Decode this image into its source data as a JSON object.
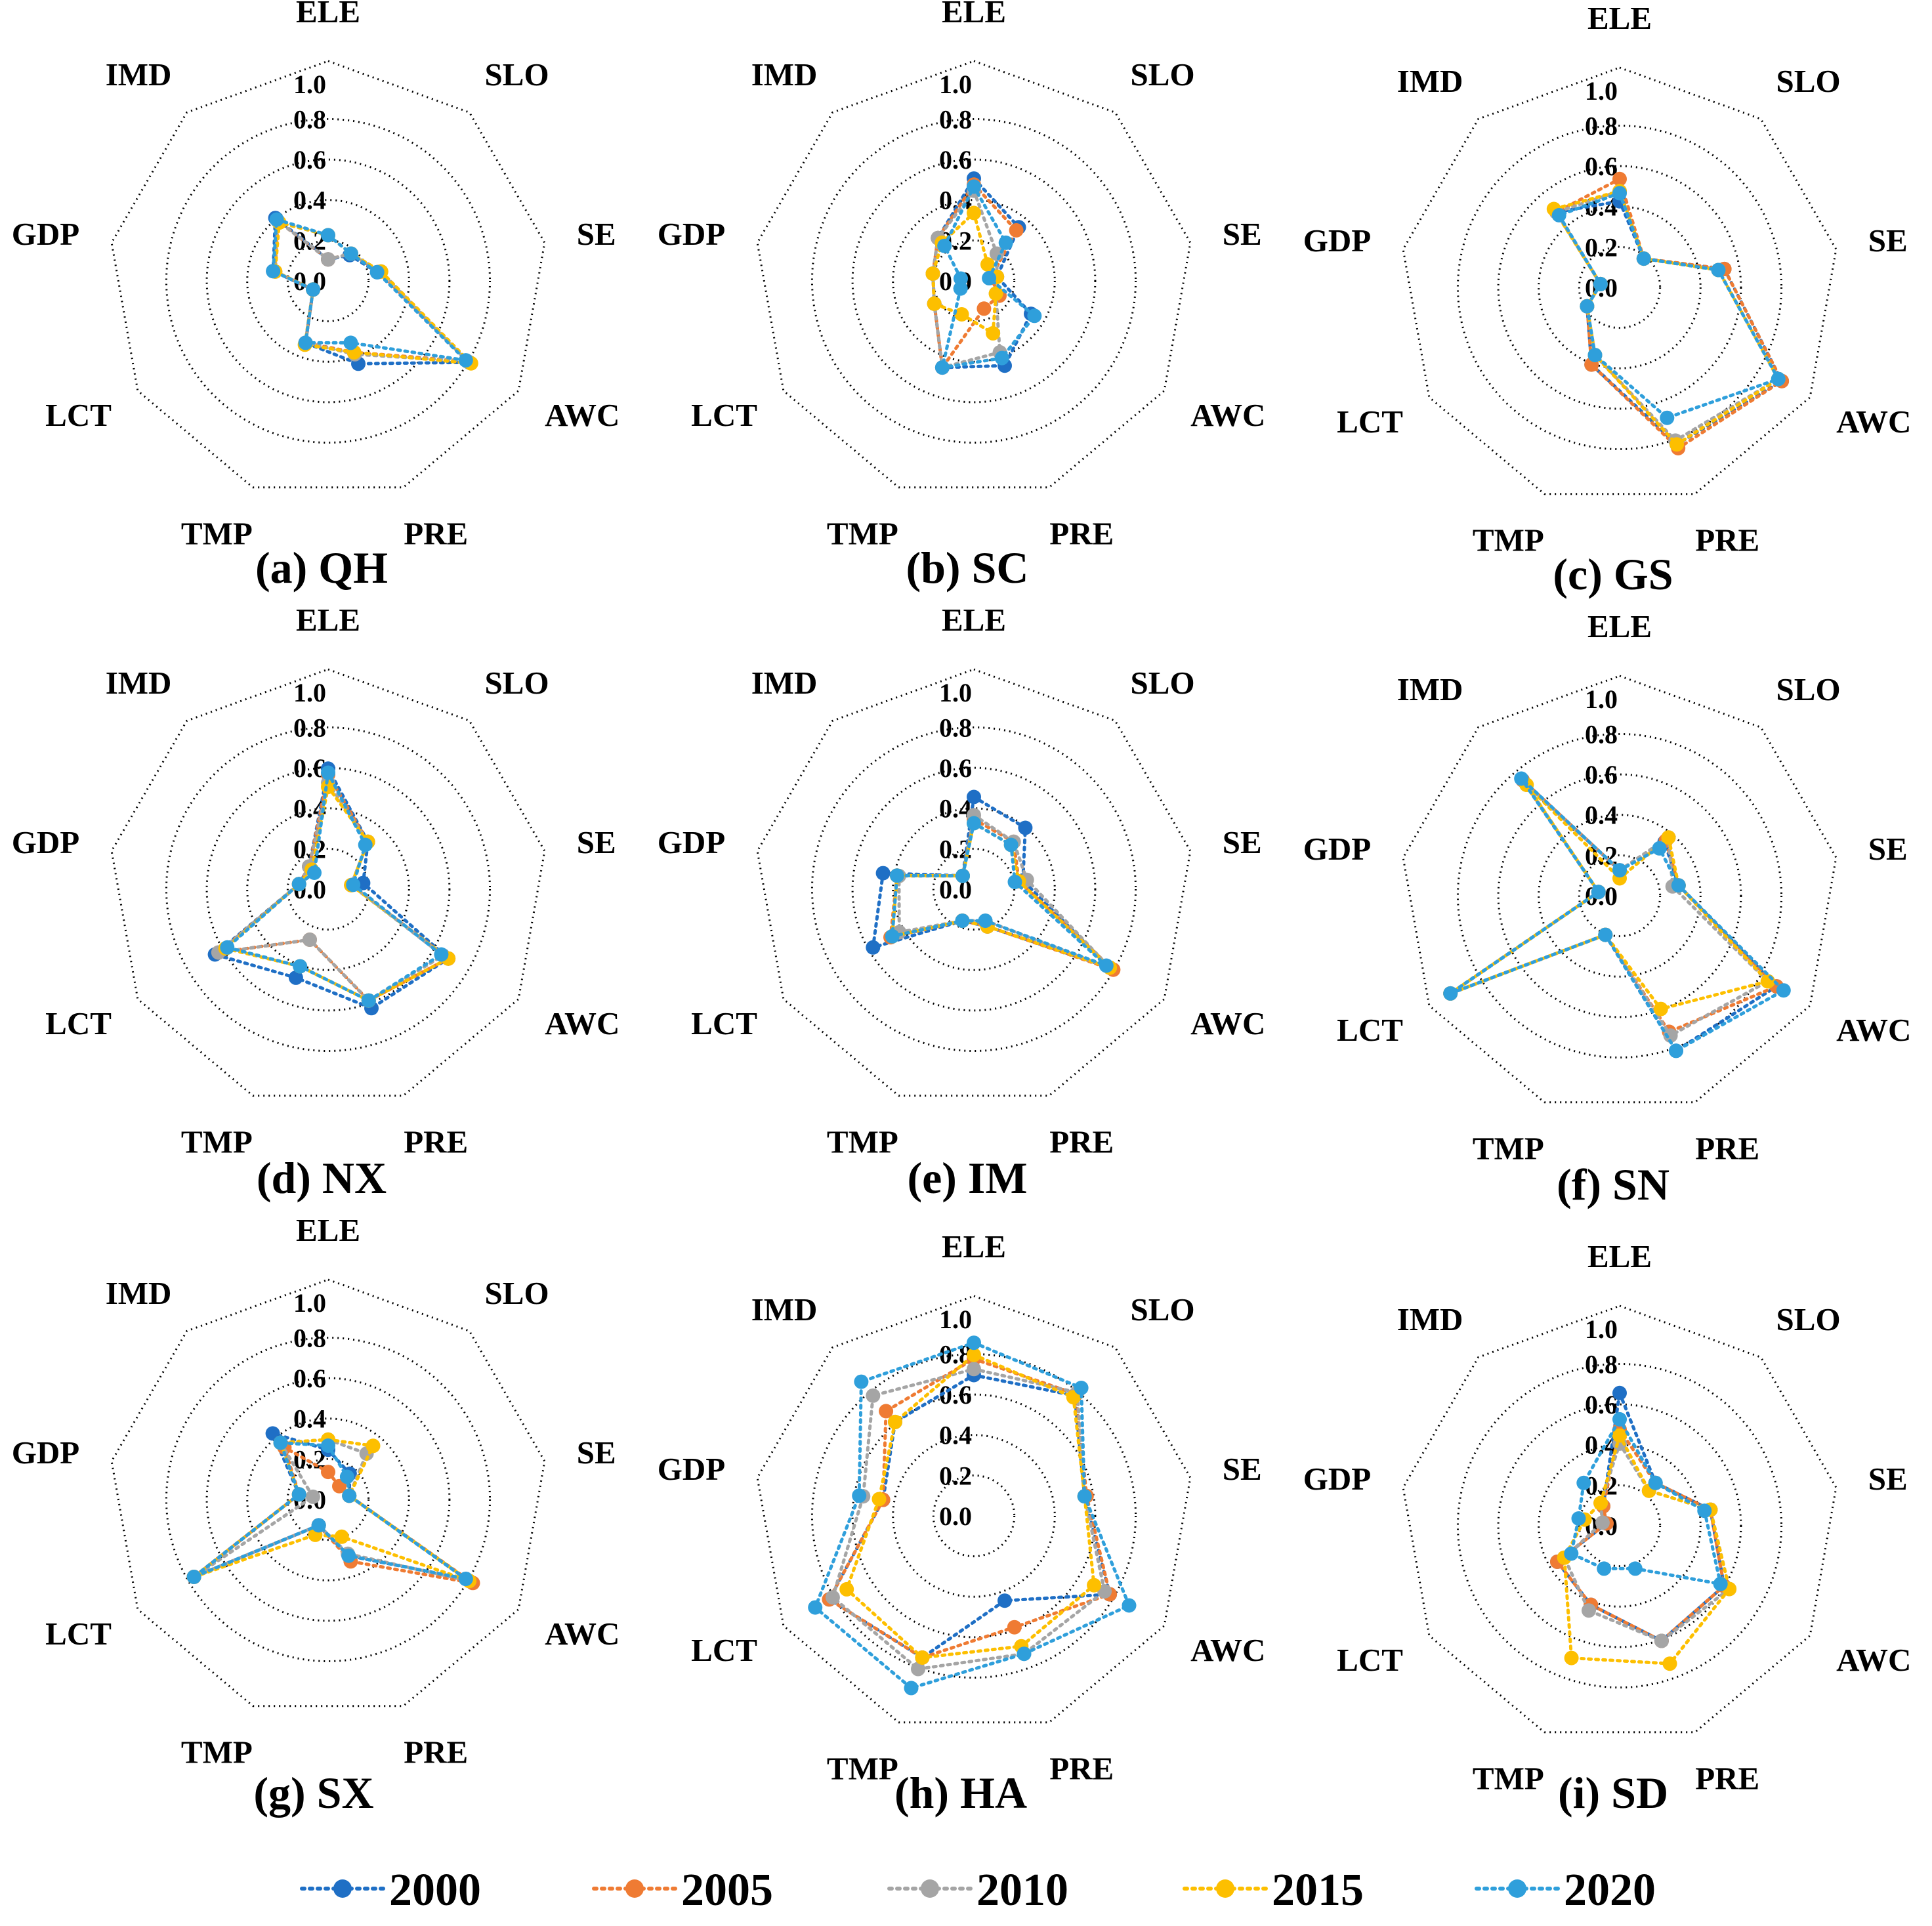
{
  "chart_data": {
    "type": "radar",
    "axes": [
      "ELE",
      "SLO",
      "SE",
      "AWC",
      "PRE",
      "TMP",
      "LCT",
      "GDP",
      "IMD"
    ],
    "ticks": [
      "1.0",
      "0.8",
      "0.6",
      "0.4",
      "0.2",
      "0.0"
    ],
    "rlim": [
      0,
      1
    ],
    "grid": "dotted",
    "legend": {
      "placement": "bottom",
      "entries": [
        {
          "name": "2000",
          "color": "#1f6fc5"
        },
        {
          "name": "2005",
          "color": "#ef7b33"
        },
        {
          "name": "2010",
          "color": "#a5a5a5"
        },
        {
          "name": "2015",
          "color": "#fdbf00"
        },
        {
          "name": "2020",
          "color": "#2f9fdb"
        }
      ]
    },
    "panels": [
      {
        "caption": "(a) QH",
        "series": [
          {
            "name": "2000",
            "values": [
              0.08,
              0.14,
              0.22,
              0.78,
              0.41,
              0.3,
              0.06,
              0.25,
              0.38
            ]
          },
          {
            "name": "2005",
            "values": [
              0.08,
              0.15,
              0.23,
              0.77,
              0.35,
              0.3,
              0.06,
              0.24,
              0.36
            ]
          },
          {
            "name": "2010",
            "values": [
              0.08,
              0.15,
              0.24,
              0.77,
              0.36,
              0.3,
              0.06,
              0.24,
              0.36
            ]
          },
          {
            "name": "2015",
            "values": [
              0.2,
              0.15,
              0.24,
              0.79,
              0.35,
              0.31,
              0.06,
              0.24,
              0.35
            ]
          },
          {
            "name": "2020",
            "values": [
              0.2,
              0.15,
              0.22,
              0.76,
              0.3,
              0.3,
              0.06,
              0.25,
              0.37
            ]
          }
        ]
      },
      {
        "caption": "(b) SC",
        "series": [
          {
            "name": "2000",
            "values": [
              0.48,
              0.32,
              0.09,
              0.3,
              0.42,
              0.43,
              0.2,
              0.18,
              0.25
            ]
          },
          {
            "name": "2005",
            "values": [
              0.45,
              0.3,
              0.06,
              0.12,
              0.12,
              0.43,
              0.2,
              0.18,
              0.25
            ]
          },
          {
            "name": "2010",
            "values": [
              0.42,
              0.15,
              0.09,
              0.1,
              0.35,
              0.43,
              0.2,
              0.18,
              0.25
            ]
          },
          {
            "name": "2015",
            "values": [
              0.31,
              0.08,
              0.09,
              0.1,
              0.25,
              0.15,
              0.2,
              0.18,
              0.22
            ]
          },
          {
            "name": "2020",
            "values": [
              0.44,
              0.22,
              0.05,
              0.32,
              0.38,
              0.43,
              0.05,
              0.04,
              0.2
            ]
          }
        ]
      },
      {
        "caption": "(c) GS",
        "series": [
          {
            "name": "2000",
            "values": [
              0.4,
              0.16,
              0.5,
              0.9,
              0.8,
              0.38,
              0.16,
              0.07,
              0.46
            ]
          },
          {
            "name": "2005",
            "values": [
              0.51,
              0.16,
              0.5,
              0.9,
              0.82,
              0.38,
              0.16,
              0.07,
              0.46
            ]
          },
          {
            "name": "2010",
            "values": [
              0.45,
              0.16,
              0.47,
              0.88,
              0.78,
              0.33,
              0.16,
              0.07,
              0.46
            ]
          },
          {
            "name": "2015",
            "values": [
              0.45,
              0.16,
              0.47,
              0.88,
              0.8,
              0.33,
              0.16,
              0.07,
              0.48
            ]
          },
          {
            "name": "2020",
            "values": [
              0.44,
              0.16,
              0.47,
              0.88,
              0.66,
              0.33,
              0.16,
              0.07,
              0.44
            ]
          }
        ]
      },
      {
        "caption": "(d) NX",
        "series": [
          {
            "name": "2000",
            "values": [
              0.57,
              0.28,
              0.15,
              0.66,
              0.6,
              0.44,
              0.62,
              0.12,
              0.12
            ]
          },
          {
            "name": "2005",
            "values": [
              0.54,
              0.28,
              0.09,
              0.66,
              0.56,
              0.24,
              0.6,
              0.12,
              0.12
            ]
          },
          {
            "name": "2010",
            "values": [
              0.5,
              0.28,
              0.09,
              0.63,
              0.56,
              0.24,
              0.6,
              0.12,
              0.12
            ]
          },
          {
            "name": "2015",
            "values": [
              0.48,
              0.28,
              0.09,
              0.66,
              0.56,
              0.38,
              0.56,
              0.12,
              0.1
            ]
          },
          {
            "name": "2020",
            "values": [
              0.55,
              0.26,
              0.1,
              0.62,
              0.56,
              0.38,
              0.55,
              0.12,
              0.08
            ]
          }
        ]
      },
      {
        "caption": "(e) IM",
        "series": [
          {
            "name": "2000",
            "values": [
              0.43,
              0.37,
              0.22,
              0.75,
              0.17,
              0.14,
              0.55,
              0.43,
              0.06
            ]
          },
          {
            "name": "2005",
            "values": [
              0.32,
              0.28,
              0.2,
              0.77,
              0.17,
              0.14,
              0.45,
              0.36,
              0.06
            ]
          },
          {
            "name": "2010",
            "values": [
              0.34,
              0.28,
              0.24,
              0.75,
              0.14,
              0.14,
              0.4,
              0.35,
              0.06
            ]
          },
          {
            "name": "2015",
            "values": [
              0.3,
              0.26,
              0.2,
              0.75,
              0.17,
              0.14,
              0.44,
              0.36,
              0.06
            ]
          },
          {
            "name": "2020",
            "values": [
              0.3,
              0.26,
              0.18,
              0.73,
              0.14,
              0.14,
              0.44,
              0.36,
              0.06
            ]
          }
        ]
      },
      {
        "caption": "(f) SN",
        "series": [
          {
            "name": "2000",
            "values": [
              0.1,
              0.32,
              0.27,
              0.87,
              0.79,
              0.18,
              0.94,
              0.08,
              0.72
            ]
          },
          {
            "name": "2005",
            "values": [
              0.1,
              0.33,
              0.27,
              0.87,
              0.69,
              0.18,
              0.94,
              0.08,
              0.72
            ]
          },
          {
            "name": "2010",
            "values": [
              0.1,
              0.35,
              0.24,
              0.82,
              0.71,
              0.18,
              0.94,
              0.08,
              0.69
            ]
          },
          {
            "name": "2015",
            "values": [
              0.06,
              0.35,
              0.27,
              0.82,
              0.57,
              0.18,
              0.94,
              0.08,
              0.69
            ]
          },
          {
            "name": "2020",
            "values": [
              0.1,
              0.28,
              0.27,
              0.91,
              0.79,
              0.18,
              0.94,
              0.08,
              0.73
            ]
          }
        ]
      },
      {
        "caption": "(g) SX",
        "series": [
          {
            "name": "2000",
            "values": [
              0.22,
              0.14,
              0.08,
              0.76,
              0.27,
              0.11,
              0.74,
              0.12,
              0.4
            ]
          },
          {
            "name": "2005",
            "values": [
              0.11,
              0.06,
              0.08,
              0.8,
              0.3,
              0.11,
              0.74,
              0.12,
              0.31
            ]
          },
          {
            "name": "2010",
            "values": [
              0.27,
              0.27,
              0.08,
              0.78,
              0.26,
              0.11,
              0.74,
              0.05,
              0.34
            ]
          },
          {
            "name": "2015",
            "values": [
              0.27,
              0.32,
              0.08,
              0.78,
              0.17,
              0.16,
              0.74,
              0.12,
              0.34
            ]
          },
          {
            "name": "2020",
            "values": [
              0.24,
              0.12,
              0.08,
              0.76,
              0.27,
              0.11,
              0.74,
              0.12,
              0.34
            ]
          }
        ]
      },
      {
        "caption": "(h) HA",
        "series": [
          {
            "name": "2000",
            "values": [
              0.67,
              0.75,
              0.53,
              0.75,
              0.42,
              0.72,
              0.8,
              0.43,
              0.58
            ]
          },
          {
            "name": "2005",
            "values": [
              0.75,
              0.76,
              0.54,
              0.75,
              0.56,
              0.72,
              0.8,
              0.43,
              0.65
            ]
          },
          {
            "name": "2010",
            "values": [
              0.7,
              0.77,
              0.53,
              0.72,
              0.7,
              0.78,
              0.78,
              0.53,
              0.75
            ]
          },
          {
            "name": "2015",
            "values": [
              0.77,
              0.74,
              0.53,
              0.66,
              0.66,
              0.72,
              0.7,
              0.45,
              0.58
            ]
          },
          {
            "name": "2020",
            "values": [
              0.83,
              0.8,
              0.53,
              0.86,
              0.7,
              0.88,
              0.88,
              0.55,
              0.84
            ]
          }
        ]
      },
      {
        "caption": "(i) SD",
        "series": [
          {
            "name": "2000",
            "values": [
              0.63,
              0.25,
              0.43,
              0.57,
              0.58,
              0.39,
              0.33,
              0.04,
              0.1
            ]
          },
          {
            "name": "2005",
            "values": [
              0.45,
              0.25,
              0.43,
              0.57,
              0.58,
              0.39,
              0.33,
              0.04,
              0.1
            ]
          },
          {
            "name": "2010",
            "values": [
              0.38,
              0.2,
              0.43,
              0.6,
              0.58,
              0.42,
              0.29,
              0.06,
              0.12
            ]
          },
          {
            "name": "2015",
            "values": [
              0.42,
              0.2,
              0.43,
              0.6,
              0.7,
              0.67,
              0.29,
              0.15,
              0.12
            ]
          },
          {
            "name": "2020",
            "values": [
              0.5,
              0.25,
              0.4,
              0.55,
              0.2,
              0.2,
              0.25,
              0.18,
              0.25
            ]
          }
        ]
      }
    ]
  }
}
